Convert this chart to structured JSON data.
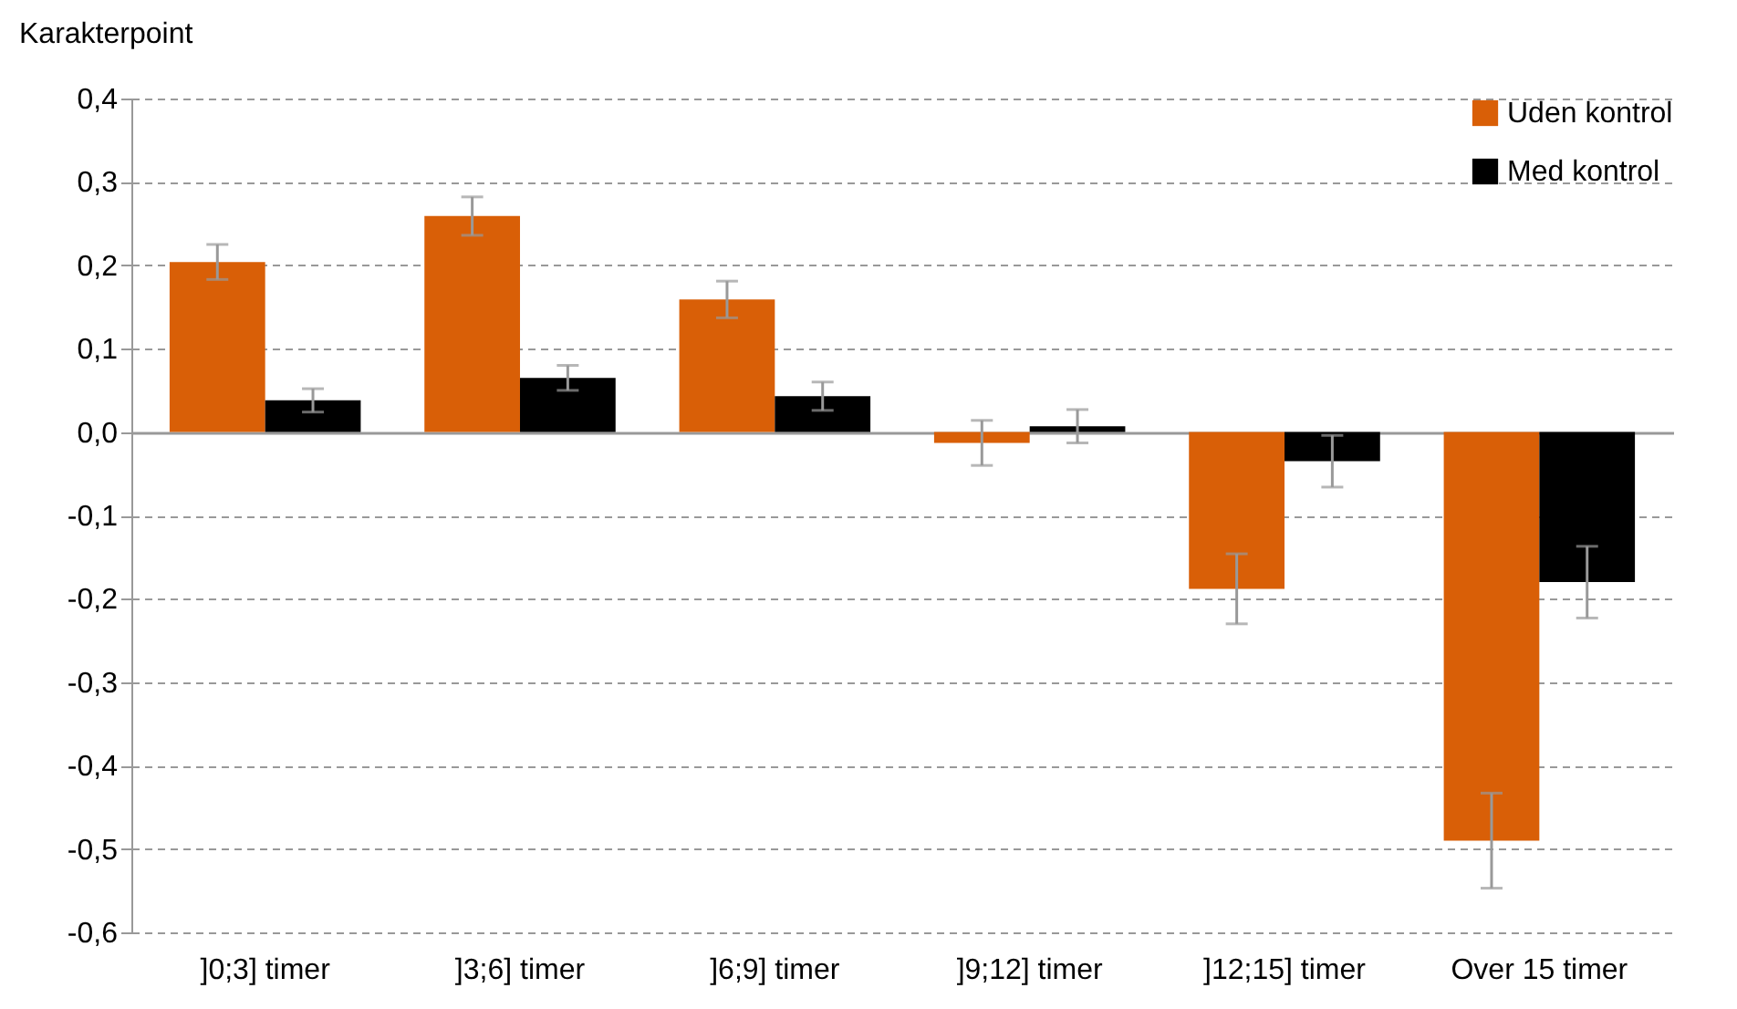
{
  "chart_data": {
    "type": "bar",
    "ylabel": "Karakterpoint",
    "categories": [
      "]0;3] timer",
      "]3;6] timer",
      "]6;9] timer",
      "]9;12] timer",
      "]12;15] timer",
      "Over 15 timer"
    ],
    "series": [
      {
        "name": "Uden kontrol",
        "color": "#d95f07",
        "values": [
          0.204,
          0.259,
          0.159,
          -0.013,
          -0.188,
          -0.49
        ],
        "errors": [
          0.021,
          0.023,
          0.022,
          0.027,
          0.042,
          0.057
        ]
      },
      {
        "name": "Med kontrol",
        "color": "#000000",
        "values": [
          0.038,
          0.065,
          0.043,
          0.007,
          -0.035,
          -0.18
        ],
        "errors": [
          0.014,
          0.015,
          0.017,
          0.02,
          0.031,
          0.043
        ]
      }
    ],
    "ylim": [
      -0.6,
      0.4
    ],
    "yticks": [
      {
        "value": -0.6,
        "label": "-0,6"
      },
      {
        "value": -0.5,
        "label": "-0,5"
      },
      {
        "value": -0.4,
        "label": "-0,4"
      },
      {
        "value": -0.3,
        "label": "-0,3"
      },
      {
        "value": -0.2,
        "label": "-0,2"
      },
      {
        "value": -0.1,
        "label": "-0,1"
      },
      {
        "value": 0,
        "label": "0,0"
      },
      {
        "value": 0.1,
        "label": "0,1"
      },
      {
        "value": 0.2,
        "label": "0,2"
      },
      {
        "value": 0.3,
        "label": "0,3"
      },
      {
        "value": 0.4,
        "label": "0,4"
      }
    ],
    "grid": "y",
    "legend": "top right"
  }
}
